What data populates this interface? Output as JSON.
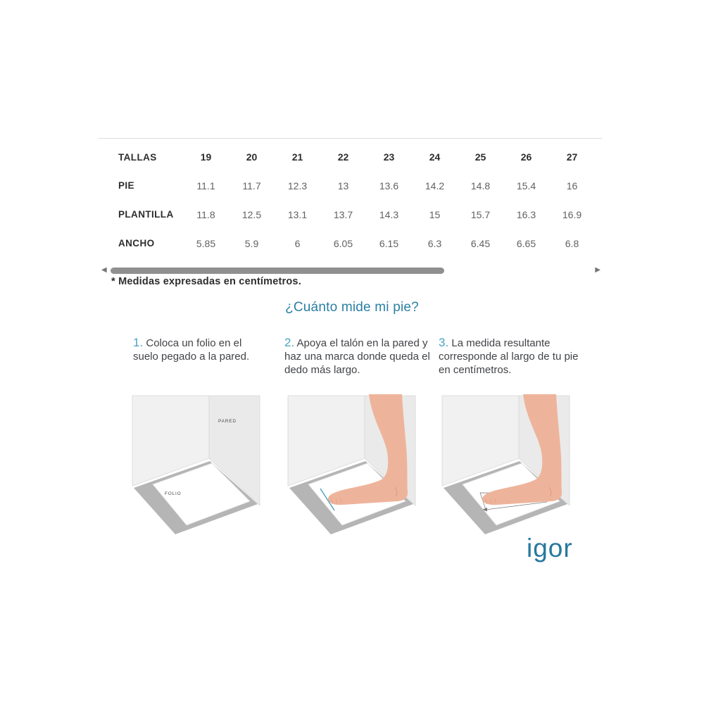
{
  "table": {
    "corner_label": "TALLAS",
    "sizes": [
      "19",
      "20",
      "21",
      "22",
      "23",
      "24",
      "25",
      "26",
      "27"
    ],
    "rows": [
      {
        "label": "PIE",
        "values": [
          "11.1",
          "11.7",
          "12.3",
          "13",
          "13.6",
          "14.2",
          "14.8",
          "15.4",
          "16"
        ]
      },
      {
        "label": "PLANTILLA",
        "values": [
          "11.8",
          "12.5",
          "13.1",
          "13.7",
          "14.3",
          "15",
          "15.7",
          "16.3",
          "16.9"
        ]
      },
      {
        "label": "ANCHO",
        "values": [
          "5.85",
          "5.9",
          "6",
          "6.05",
          "6.15",
          "6.3",
          "6.45",
          "6.65",
          "6.8"
        ]
      }
    ],
    "note": "* Medidas expresadas en centímetros."
  },
  "scrollbar": {
    "left_arrow_icon": "◀",
    "right_arrow_icon": "▶"
  },
  "guide": {
    "title": "¿Cuánto mide mi pie?",
    "steps": [
      {
        "number": "1.",
        "text": "Coloca un folio en el suelo pegado a la pared."
      },
      {
        "number": "2.",
        "text": "Apoya el talón en la pared y haz una marca donde queda el dedo más largo."
      },
      {
        "number": "3.",
        "text": "La medida resultante corresponde al largo de tu pie en centímetros."
      }
    ],
    "labels": {
      "wall": "PARED",
      "paper": "FOLIO"
    }
  },
  "brand": {
    "logo_text": "igor"
  },
  "colors": {
    "accent_title": "#2b7fa3",
    "step_number": "#4ba3c3",
    "logo": "#27789e",
    "scrollbar_thumb": "#8f8f8f",
    "table_value_text": "#616161",
    "skin": "#eeb49b",
    "floor_mat": "#b5b5b5",
    "wall_left": "#f1f1f1",
    "wall_right": "#eaeaea"
  }
}
